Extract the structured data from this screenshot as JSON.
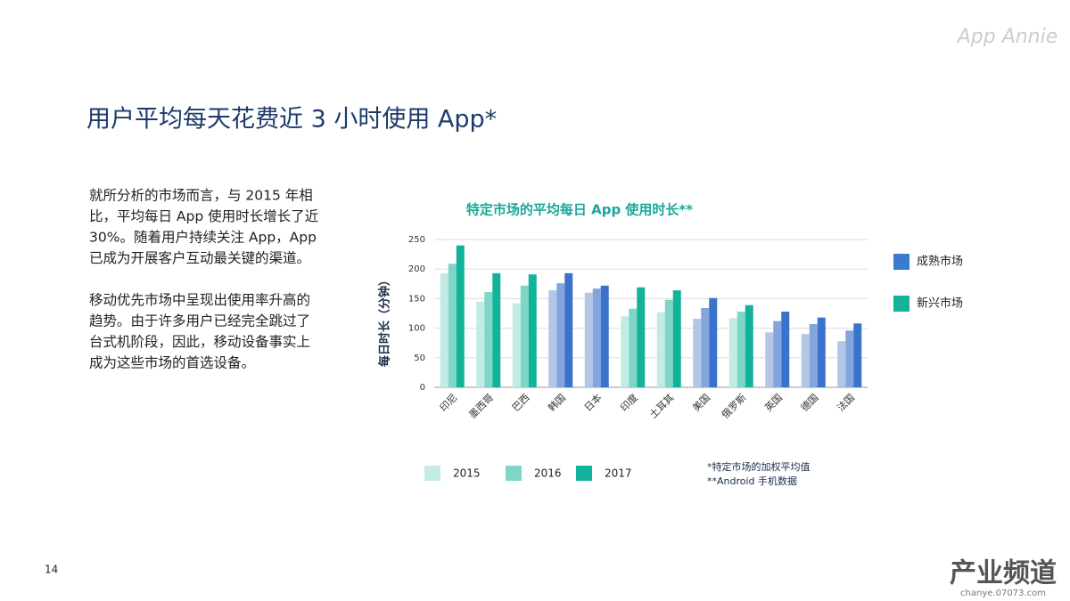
{
  "slide": {
    "title": "用户平均每天花费近 3 小时使用 App*",
    "logo": "App Annie",
    "page_number": "14",
    "watermark": [
      "产业频道",
      "chanye.07073.com"
    ],
    "paragraphs": [
      [
        "就所分析的市场而言，与 2015 年相",
        "比，平均每日 App 使用时长增长了近",
        "30%。随着用户持续关注 App，App",
        "已成为开展客户互动最关键的渠道。"
      ],
      [
        "移动优先市场中呈现出使用率升高的",
        "趋势。由于许多用户已经完全跳过了",
        "台式机阶段，因此，移动设备事实上",
        "成为这些市场的首选设备。"
      ]
    ],
    "footnotes": [
      "*特定市场的加权平均值",
      "**Android 手机数据"
    ]
  },
  "chart_data": {
    "type": "bar",
    "title": "特定市场的平均每日 App 使用时长**",
    "y_label": "每日时长（分钟）",
    "categories": [
      "印尼",
      "墨西哥",
      "巴西",
      "韩国",
      "日本",
      "印度",
      "土耳其",
      "美国",
      "俄罗斯",
      "英国",
      "德国",
      "法国"
    ],
    "category_groups": [
      1,
      1,
      1,
      0,
      0,
      1,
      1,
      0,
      1,
      0,
      0,
      0
    ],
    "market_groups": [
      {
        "name": "成熟市场",
        "color": "#3a7ad3",
        "colors": [
          "#b3c6e6",
          "#82a5dc",
          "#3a72cc"
        ]
      },
      {
        "name": "新兴市场",
        "color": "#12b39a",
        "colors": [
          "#c2ebe3",
          "#7ed6c7",
          "#12b39a"
        ]
      }
    ],
    "series": [
      {
        "name": "2015",
        "color": "#c2ebe3",
        "values": [
          193,
          145,
          142,
          164,
          160,
          120,
          127,
          116,
          117,
          93,
          90,
          78
        ]
      },
      {
        "name": "2016",
        "color": "#7ed6c7",
        "values": [
          209,
          161,
          172,
          176,
          167,
          133,
          148,
          134,
          128,
          112,
          107,
          96
        ]
      },
      {
        "name": "2017",
        "color": "#12b39a",
        "values": [
          240,
          193,
          191,
          193,
          172,
          169,
          164,
          151,
          139,
          128,
          118,
          108
        ]
      }
    ],
    "ylim": [
      0,
      250
    ],
    "yticks": [
      0,
      50,
      100,
      150,
      200,
      250
    ],
    "grid": true
  }
}
